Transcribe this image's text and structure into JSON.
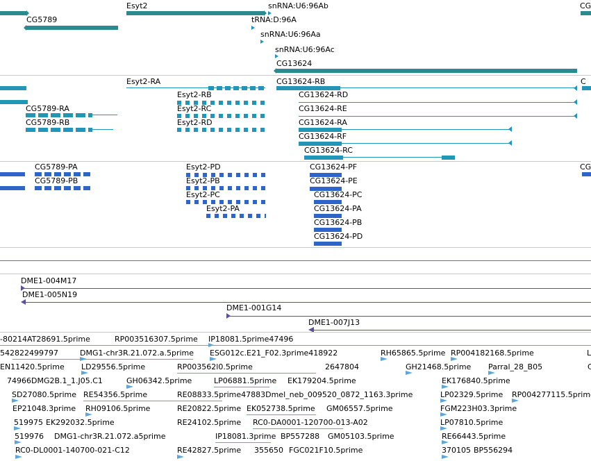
{
  "colors": {
    "gene": "#2a8a8e",
    "transcript": "#2396b8",
    "protein": "#2f64c8",
    "clone": "#5a4f9a",
    "est": "#5fa6d8",
    "separator": "#c9c9c9"
  },
  "track_gene": {
    "features": [
      {
        "label": "Esyt2"
      },
      {
        "label": "snRNA:U6:96Ab"
      },
      {
        "label": "CG5789"
      },
      {
        "label": "tRNA:D:96A"
      },
      {
        "label": "snRNA:U6:96Aa"
      },
      {
        "label": "snRNA:U6:96Ac"
      },
      {
        "label": "CG13624"
      },
      {
        "label": "CG"
      }
    ]
  },
  "track_transcript": {
    "features": [
      {
        "label": "Esyt2-RA"
      },
      {
        "label": "CG13624-RB"
      },
      {
        "label": "C"
      },
      {
        "label": "Esyt2-RB"
      },
      {
        "label": "CG13624-RD"
      },
      {
        "label": "CG5789-RA"
      },
      {
        "label": "Esyt2-RC"
      },
      {
        "label": "CG13624-RE"
      },
      {
        "label": "CG5789-RB"
      },
      {
        "label": "Esyt2-RD"
      },
      {
        "label": "CG13624-RA"
      },
      {
        "label": "CG13624-RF"
      },
      {
        "label": "CG13624-RC"
      }
    ]
  },
  "track_protein": {
    "features": [
      {
        "label": "CG5789-PA"
      },
      {
        "label": "Esyt2-PD"
      },
      {
        "label": "CG13624-PF"
      },
      {
        "label": "CG"
      },
      {
        "label": "CG5789-PB"
      },
      {
        "label": "Esyt2-PB"
      },
      {
        "label": "CG13624-PE"
      },
      {
        "label": "Esyt2-PC"
      },
      {
        "label": "CG13624-PC"
      },
      {
        "label": "Esyt2-PA"
      },
      {
        "label": "CG13624-PA"
      },
      {
        "label": "CG13624-PB"
      },
      {
        "label": "CG13624-PD"
      }
    ]
  },
  "track_clone": {
    "features": [
      {
        "label": "DME1-004M17"
      },
      {
        "label": "DME1-005N19"
      },
      {
        "label": "DME1-001G14"
      },
      {
        "label": "DME1-007J13"
      }
    ]
  },
  "track_est": {
    "rows": [
      [
        "-80214AT28691.5prime",
        "RP003516307.5prime",
        "IP18081.5prime47496"
      ],
      [
        "542822499797",
        "DMG1-chr3R.21.072.a.5prime",
        "ESG012c.E21_F02.3prime418922",
        "RH65865.5prime",
        "RP004182168.5prime",
        "L"
      ],
      [
        "EN11420.5prime",
        "LD29556.5prime",
        "RP003562l0.5prime",
        "2647804",
        "GH21468.5prime",
        "Parral_28_B05",
        "C"
      ],
      [
        "74966DMG2B.1_1.J05.C1",
        "GH06342.5prime",
        "LP06881.5prime",
        "EK179204.5prime",
        "EK176840.5prime"
      ],
      [
        "SD27080.5prime",
        "RE54356.5prime",
        "RE08833.5prime47883Dmel_neb_009520_0872_1163.3prime",
        "LP02329.5prime",
        "RP004277115.5prime"
      ],
      [
        "EP21048.3prime",
        "RH09106.5prime",
        "RE20822.5prime",
        "EK052738.5prime",
        "GM06557.5prime",
        "FGM223H03.3prime"
      ],
      [
        "519975",
        "EK292032.5prime",
        "RE24102.5prime",
        "RC0-DA0001-120700-013-A02",
        "LP07810.5prime"
      ],
      [
        "519976",
        "DMG1-chr3R.21.072.a5prime",
        "IP18081.3prime",
        "BP557288",
        "GM05103.5prime",
        "RE66443.5prime"
      ],
      [
        "RC0-DL0001-140700-021-C12",
        "RE42827.5prime",
        "355650",
        "FGC021F10.5prime",
        "370105",
        "BP556294"
      ]
    ]
  }
}
